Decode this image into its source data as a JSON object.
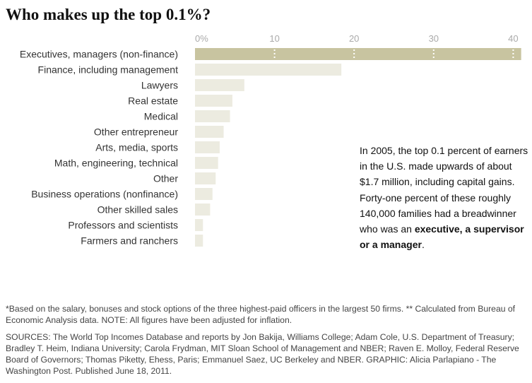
{
  "title": "Who makes up the top 0.1%?",
  "chart_data": {
    "type": "bar",
    "orientation": "horizontal",
    "title": "Who makes up the top 0.1%?",
    "xlabel": "",
    "ylabel": "",
    "xlim": [
      0,
      41
    ],
    "ticks": [
      {
        "value": 0,
        "label": "0%"
      },
      {
        "value": 10,
        "label": "10"
      },
      {
        "value": 20,
        "label": "20"
      },
      {
        "value": 30,
        "label": "30"
      },
      {
        "value": 40,
        "label": "40"
      }
    ],
    "categories": [
      "Executives, managers (non-finance)",
      "Finance, including management",
      "Lawyers",
      "Real estate",
      "Medical",
      "Other entrepreneur",
      "Arts, media, sports",
      "Math, engineering, technical",
      "Other",
      "Business operations (nonfinance)",
      "Other skilled sales",
      "Professors and scientists",
      "Farmers and ranchers"
    ],
    "values": [
      41,
      18.4,
      6.2,
      4.7,
      4.4,
      3.6,
      3.1,
      2.9,
      2.6,
      2.2,
      1.9,
      1.0,
      1.0
    ],
    "highlight_index": 0,
    "grid": false,
    "colors": {
      "highlight": "#c8c4a0",
      "bar": "#ecebe0",
      "tick_marker": "#ffffff"
    }
  },
  "annotation": {
    "text_before": "In 2005, the top 0.1 percent of earners in the U.S. made upwards of about $1.7 million, including capital gains. Forty-one percent of these roughly 140,000 families had a breadwinner who was an ",
    "bold_text": "executive, a supervisor or a manager",
    "text_after": "."
  },
  "footnote": "*Based on the salary, bonuses and stock options of the three highest-paid officers in the largest 50 firms. ** Calculated from Bureau of Economic Analysis data. NOTE: All figures have been adjusted for inflation.",
  "sources": "SOURCES: The World Top Incomes Database and reports by Jon Bakija, Williams College; Adam Cole, U.S. Department of Treasury; Bradley T. Heim, Indiana University; Carola Frydman, MIT Sloan School of Management and NBER; Raven E. Molloy, Federal Reserve Board of Governors; Thomas Piketty, Ehess, Paris; Emmanuel Saez, UC Berkeley and NBER. GRAPHIC: Alicia Parlapiano - The Washington Post. Published June 18, 2011."
}
